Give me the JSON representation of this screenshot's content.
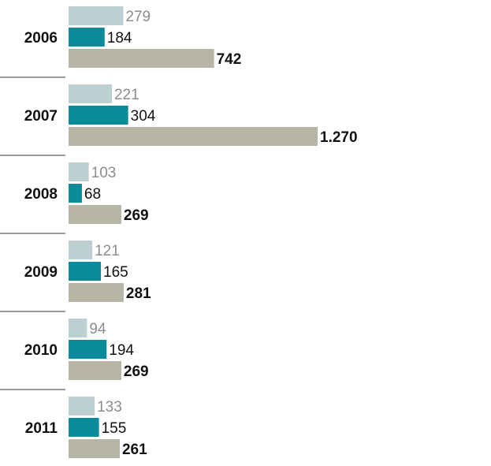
{
  "chart_data": {
    "type": "bar",
    "orientation": "horizontal",
    "title": "",
    "xlabel": "",
    "ylabel": "",
    "categories": [
      "2006",
      "2007",
      "2008",
      "2009",
      "2010",
      "2011"
    ],
    "series": [
      {
        "name": "series-1",
        "color": "#bccfd1",
        "label_color": "#8c8c8c",
        "values": [
          279,
          221,
          103,
          121,
          94,
          133
        ],
        "labels": [
          "279",
          "221",
          "103",
          "121",
          "94",
          "133"
        ]
      },
      {
        "name": "series-2",
        "color": "#0b8a99",
        "label_color": "#111111",
        "values": [
          184,
          304,
          68,
          165,
          194,
          155
        ],
        "labels": [
          "184",
          "304",
          "68",
          "165",
          "194",
          "155"
        ]
      },
      {
        "name": "series-3",
        "color": "#b7b5a5",
        "label_color": "#111111",
        "values": [
          742,
          1270,
          269,
          281,
          269,
          261
        ],
        "labels": [
          "742",
          "1.270",
          "269",
          "281",
          "269",
          "261"
        ]
      }
    ],
    "xlim": [
      0,
      1270
    ],
    "grid": false,
    "legend": "none"
  }
}
